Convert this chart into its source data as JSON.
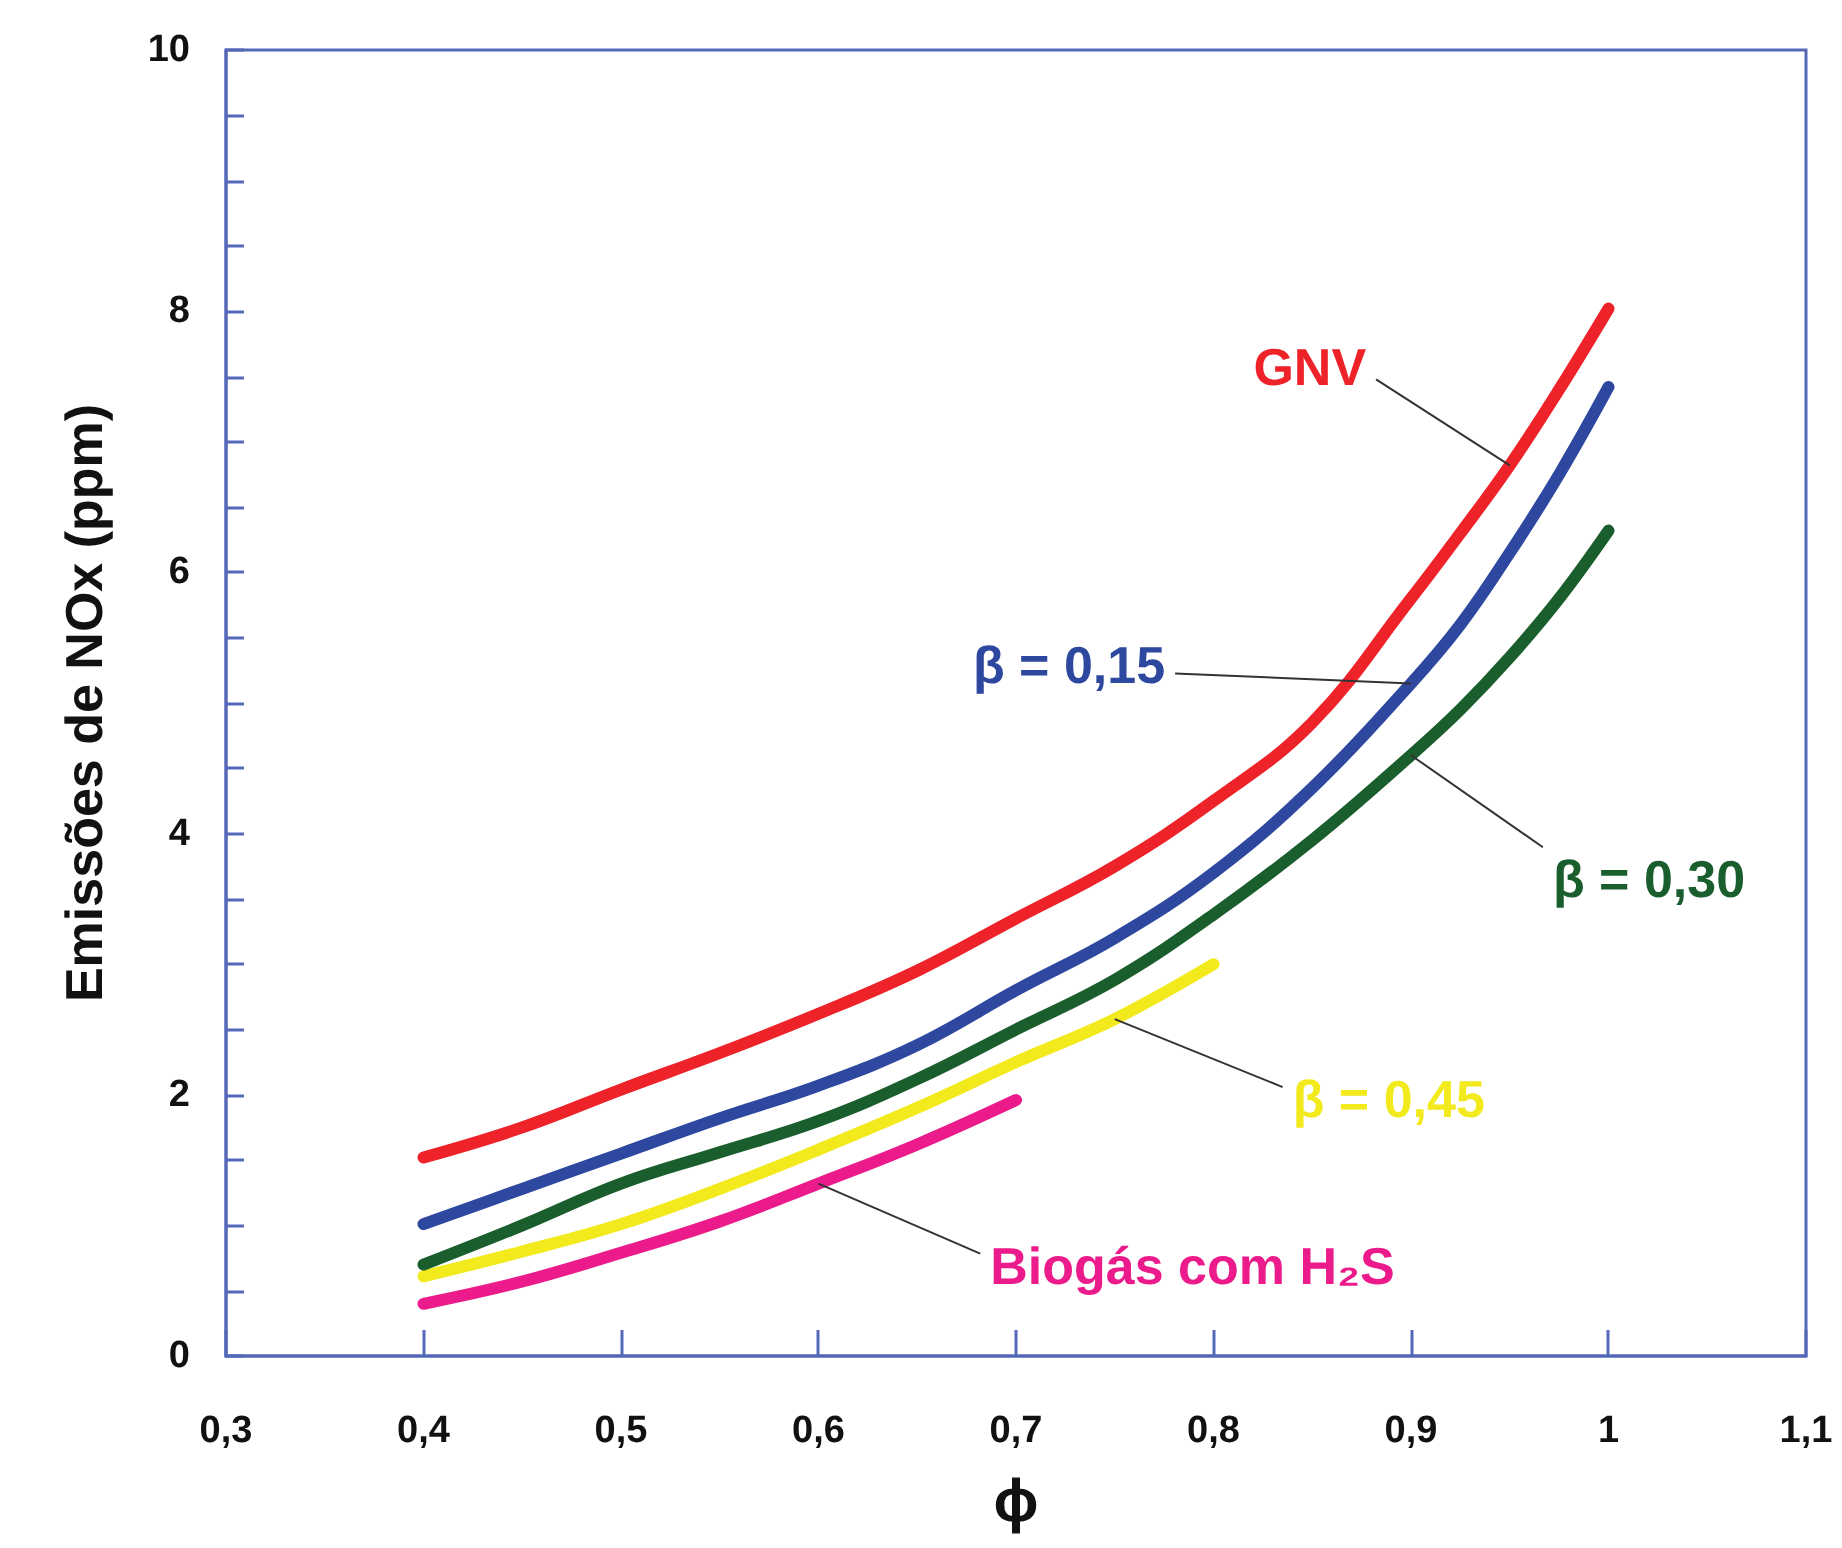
{
  "chart_data": {
    "type": "line",
    "xlabel": "ϕ",
    "ylabel": "Emissões de NOx (ppm)",
    "xlim": [
      0.3,
      1.1
    ],
    "xticks": [
      {
        "value": 0.3,
        "label": "0,3"
      },
      {
        "value": 0.4,
        "label": "0,4"
      },
      {
        "value": 0.5,
        "label": "0,5"
      },
      {
        "value": 0.6,
        "label": "0,6"
      },
      {
        "value": 0.7,
        "label": "0,7"
      },
      {
        "value": 0.8,
        "label": "0,8"
      },
      {
        "value": 0.9,
        "label": "0,9"
      },
      1,
      {
        "value": 1.1,
        "label": "1,1"
      }
    ],
    "ylim": [
      0,
      10
    ],
    "yticks": [
      0,
      {
        "value": 0.5,
        "label": null
      },
      {
        "value": 1,
        "label": null
      },
      {
        "value": 1.5,
        "label": null
      },
      2,
      {
        "value": 2.5,
        "label": null
      },
      {
        "value": 3,
        "label": null
      },
      {
        "value": 3.5,
        "label": null
      },
      4,
      {
        "value": 4.5,
        "label": null
      },
      {
        "value": 5,
        "label": null
      },
      {
        "value": 5.5,
        "label": null
      },
      6,
      {
        "value": 6.5,
        "label": null
      },
      {
        "value": 7,
        "label": null
      },
      {
        "value": 7.5,
        "label": null
      },
      8,
      {
        "value": 8.5,
        "label": null
      },
      {
        "value": 9,
        "label": null
      },
      {
        "value": 9.5,
        "label": null
      },
      10
    ],
    "line_style": "solid",
    "series": [
      {
        "name": "GNV",
        "color": "#ee2229",
        "x": [
          0.4,
          0.45,
          0.5,
          0.55,
          0.6,
          0.65,
          0.7,
          0.75,
          0.8,
          0.85,
          0.9,
          0.925,
          0.95,
          0.975,
          1.0
        ],
        "values": [
          1.52,
          1.75,
          2.04,
          2.32,
          2.62,
          2.95,
          3.35,
          3.75,
          4.25,
          4.85,
          5.8,
          6.3,
          6.82,
          7.4,
          8.02
        ]
      },
      {
        "name": "β = 0,15",
        "color": "#2e48a0",
        "x": [
          0.4,
          0.45,
          0.5,
          0.55,
          0.6,
          0.65,
          0.7,
          0.75,
          0.8,
          0.85,
          0.9,
          0.925,
          0.95,
          0.975,
          1.0
        ],
        "values": [
          1.01,
          1.28,
          1.55,
          1.82,
          2.07,
          2.38,
          2.8,
          3.2,
          3.7,
          4.35,
          5.15,
          5.6,
          6.15,
          6.75,
          7.42
        ]
      },
      {
        "name": "β = 0,30",
        "color": "#1b5e2e",
        "x": [
          0.4,
          0.45,
          0.5,
          0.55,
          0.6,
          0.65,
          0.7,
          0.75,
          0.8,
          0.85,
          0.9,
          0.925,
          0.95,
          0.975,
          1.0
        ],
        "values": [
          0.7,
          1.0,
          1.32,
          1.56,
          1.8,
          2.12,
          2.5,
          2.88,
          3.38,
          3.95,
          4.6,
          4.95,
          5.35,
          5.8,
          6.32
        ]
      },
      {
        "name": "β = 0,45",
        "color": "#f2ea1c",
        "x": [
          0.4,
          0.45,
          0.5,
          0.55,
          0.6,
          0.65,
          0.7,
          0.75,
          0.8
        ],
        "values": [
          0.61,
          0.8,
          1.01,
          1.28,
          1.58,
          1.9,
          2.25,
          2.58,
          3.0
        ]
      },
      {
        "name": "Biogás com H₂S",
        "color": "#ec1b8c",
        "x": [
          0.4,
          0.45,
          0.5,
          0.55,
          0.6,
          0.65,
          0.7
        ],
        "values": [
          0.4,
          0.57,
          0.79,
          1.03,
          1.32,
          1.62,
          1.96
        ]
      }
    ]
  }
}
